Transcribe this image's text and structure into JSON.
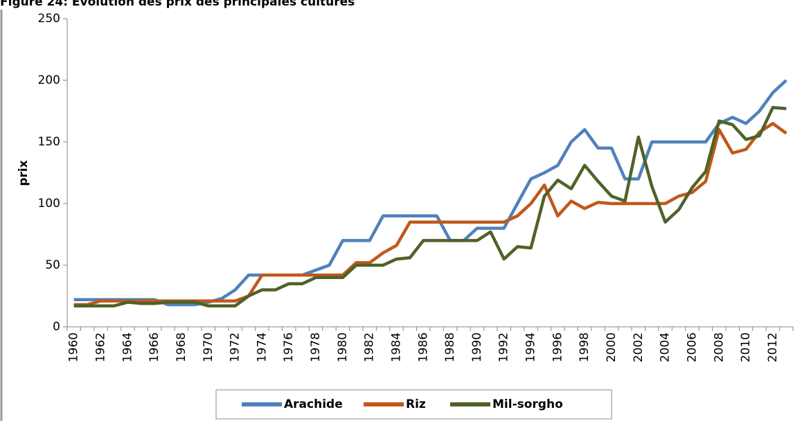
{
  "chart_data": {
    "type": "line",
    "title": "Figure 24: Evolution des prix des principales cultures",
    "y_label": "prix",
    "categories": [
      "1960",
      null,
      "1962",
      null,
      "1964",
      null,
      "1966",
      null,
      "1968",
      null,
      "1970",
      null,
      "1972",
      null,
      "1974",
      null,
      "1976",
      null,
      "1978",
      null,
      "1980",
      null,
      "1982",
      null,
      "1984",
      null,
      "1986",
      null,
      "1988",
      null,
      "1990",
      null,
      "1992",
      null,
      "1994",
      null,
      "1996",
      null,
      "1998",
      null,
      "2000",
      null,
      "2002",
      null,
      "2004",
      null,
      "2006",
      null,
      "2008",
      null,
      "2010",
      null,
      "2012",
      null
    ],
    "series": [
      {
        "name": "Arachide",
        "color": "#4f81bd",
        "values": [
          22,
          22,
          22,
          22,
          22,
          22,
          22,
          18,
          18,
          18,
          20,
          23,
          30,
          42,
          42,
          42,
          42,
          42,
          46,
          50,
          70,
          70,
          70,
          90,
          90,
          90,
          90,
          90,
          70,
          70,
          80,
          80,
          80,
          100,
          120,
          125,
          131,
          150,
          160,
          145,
          145,
          120,
          120,
          150,
          150,
          150,
          150,
          150,
          165,
          170,
          165,
          175,
          190,
          200
        ]
      },
      {
        "name": "Riz",
        "color": "#c0581b",
        "values": [
          18,
          18,
          21,
          21,
          21,
          21,
          21,
          21,
          21,
          21,
          21,
          21,
          21,
          25,
          42,
          42,
          42,
          42,
          42,
          42,
          42,
          52,
          52,
          60,
          66,
          85,
          85,
          85,
          85,
          85,
          85,
          85,
          85,
          90,
          100,
          115,
          90,
          102,
          96,
          101,
          100,
          100,
          100,
          100,
          100,
          106,
          109,
          118,
          160,
          141,
          144,
          158,
          165,
          157
        ]
      },
      {
        "name": "Mil-sorgho",
        "color": "#4f6228",
        "values": [
          17,
          17,
          17,
          17,
          20,
          19,
          19,
          20,
          20,
          20,
          17,
          17,
          17,
          25,
          30,
          30,
          35,
          35,
          40,
          40,
          40,
          50,
          50,
          50,
          55,
          56,
          70,
          70,
          70,
          70,
          70,
          77,
          55,
          65,
          64,
          106,
          119,
          112,
          131,
          118,
          106,
          102,
          154,
          114,
          85,
          95,
          113,
          126,
          167,
          164,
          152,
          155,
          178,
          177
        ]
      }
    ],
    "ylim": [
      0,
      250
    ],
    "yticks": [
      0,
      50,
      100,
      150,
      200,
      250
    ],
    "grid": false,
    "legend": "bottom"
  }
}
